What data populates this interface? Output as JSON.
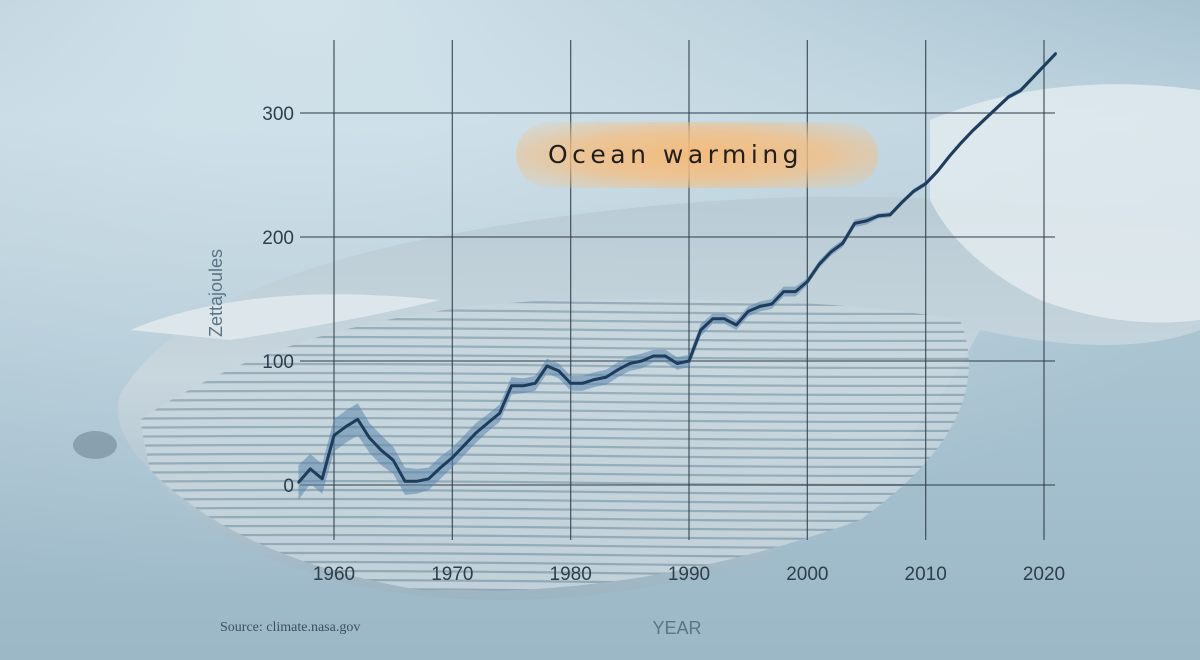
{
  "chart_data": {
    "type": "line",
    "title": "Ocean warming",
    "xlabel": "YEAR",
    "ylabel": "Zettajoules",
    "source": "Source: climate.nasa.gov",
    "xlim": [
      1956,
      2023
    ],
    "ylim": [
      -20,
      345
    ],
    "xticks": [
      1960,
      1970,
      1980,
      1990,
      2000,
      2010,
      2020
    ],
    "yticks": [
      0,
      100,
      200,
      300
    ],
    "grid": true,
    "colors": {
      "line": "#1e3d5c",
      "band": "#5b86ad",
      "grid": "#2f3d48",
      "title_highlight": "#f2b06a"
    },
    "series": [
      {
        "x": [
          1957,
          1958,
          1959,
          1960,
          1961,
          1962,
          1963,
          1964,
          1965,
          1966,
          1967,
          1968,
          1969,
          1970,
          1971,
          1972,
          1973,
          1974,
          1975,
          1976,
          1977,
          1978,
          1979,
          1980,
          1981,
          1982,
          1983,
          1984,
          1985,
          1986,
          1987,
          1988,
          1989,
          1990,
          1991,
          1992,
          1993,
          1994,
          1995,
          1996,
          1997,
          1998,
          1999,
          2000,
          2001,
          2002,
          2003,
          2004,
          2005,
          2006,
          2007,
          2008,
          2009,
          2010,
          2011,
          2012,
          2013,
          2014,
          2015,
          2016,
          2017,
          2018,
          2019,
          2020,
          2021
        ],
        "values": [
          2,
          13,
          5,
          40,
          47,
          53,
          38,
          28,
          20,
          3,
          3,
          5,
          14,
          22,
          32,
          42,
          50,
          58,
          80,
          80,
          82,
          96,
          92,
          82,
          82,
          85,
          87,
          93,
          98,
          100,
          104,
          104,
          98,
          100,
          125,
          134,
          134,
          129,
          140,
          144,
          146,
          156,
          156,
          164,
          178,
          188,
          195,
          211,
          213,
          217,
          218,
          228,
          237,
          243,
          253,
          265,
          276,
          286,
          295,
          304,
          313,
          318,
          328,
          338,
          348
        ],
        "uncertainty": [
          14,
          12,
          12,
          13,
          13,
          13,
          12,
          12,
          11,
          11,
          10,
          9,
          9,
          8,
          8,
          8,
          7,
          7,
          7,
          6,
          6,
          6,
          6,
          6,
          6,
          6,
          6,
          6,
          6,
          6,
          5,
          5,
          5,
          5,
          5,
          4,
          4,
          4,
          4,
          4,
          4,
          4,
          4,
          3,
          3,
          3,
          3,
          3,
          3,
          2,
          2,
          2,
          2,
          2,
          2,
          2,
          2,
          2,
          2,
          2,
          2,
          2,
          2,
          2,
          2
        ]
      }
    ]
  }
}
